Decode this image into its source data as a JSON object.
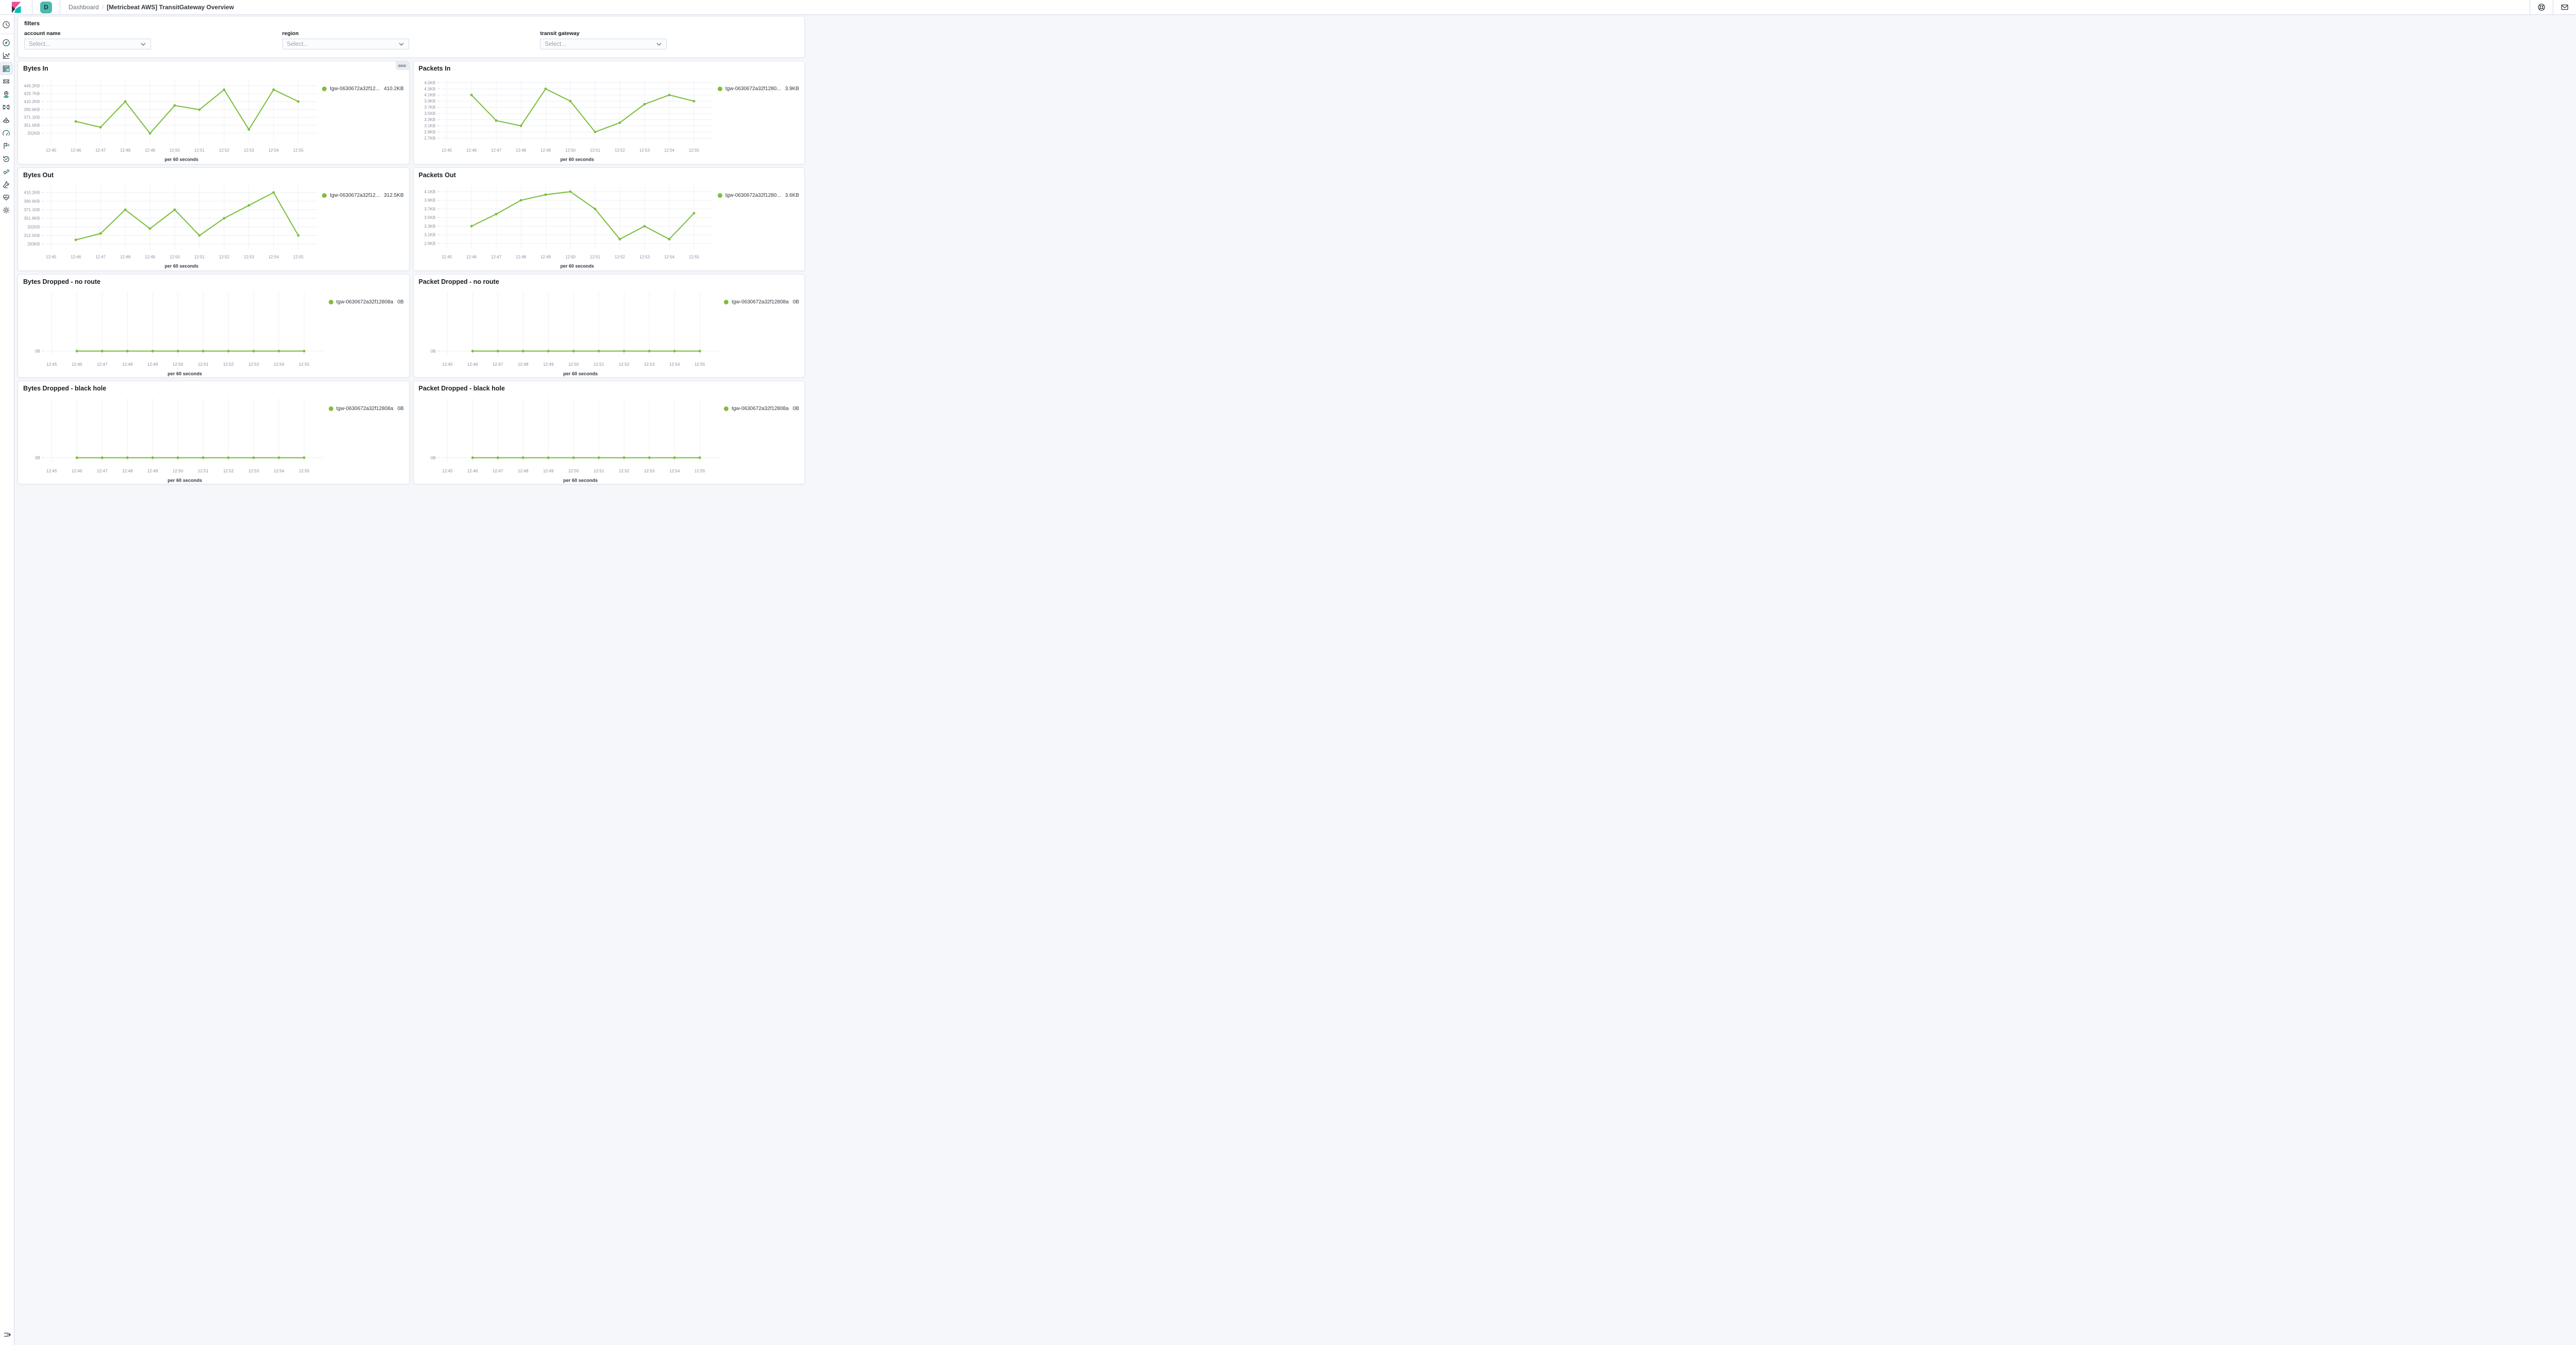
{
  "header": {
    "space_initial": "D",
    "breadcrumb": {
      "parent": "Dashboard",
      "separator": "/",
      "current": "[Metricbeat AWS] TransitGateway Overview"
    }
  },
  "sidebar": {
    "items": [
      {
        "name": "recently-viewed"
      },
      {
        "name": "discover"
      },
      {
        "name": "visualize"
      },
      {
        "name": "dashboard",
        "selected": true
      },
      {
        "name": "canvas"
      },
      {
        "name": "maps"
      },
      {
        "name": "machine-learning"
      },
      {
        "name": "metrics"
      },
      {
        "name": "logs"
      },
      {
        "name": "apm"
      },
      {
        "name": "uptime"
      },
      {
        "name": "siem"
      },
      {
        "name": "dev-tools"
      },
      {
        "name": "stack-monitoring"
      },
      {
        "name": "management"
      }
    ]
  },
  "filters": {
    "title": "filters",
    "fields": [
      {
        "label": "account name",
        "placeholder": "Select..."
      },
      {
        "label": "region",
        "placeholder": "Select..."
      },
      {
        "label": "transit gateway",
        "placeholder": "Select..."
      }
    ]
  },
  "colors": {
    "series_green": "#7DBE3C",
    "avatar_teal": "#4DBAAE",
    "logo_pink": "#F04E98",
    "logo_teal": "#00BFB3",
    "logo_dark": "#343741"
  },
  "chart_data": [
    {
      "id": "bytes-in",
      "type": "line",
      "title": "Bytes In",
      "options_icon": true,
      "legend": {
        "name": "tgw-0630672a32f12...",
        "value": "410.2KB"
      },
      "xlabel": "per 60 seconds",
      "x_ticks": [
        "12:45",
        "12:46",
        "12:47",
        "12:48",
        "12:49",
        "12:50",
        "12:51",
        "12:52",
        "12:53",
        "12:54",
        "12:55"
      ],
      "y_ticks": [
        [
          449.2,
          "449.2KB"
        ],
        [
          429.7,
          "429.7KB"
        ],
        [
          410.2,
          "410.2KB"
        ],
        [
          390.6,
          "390.6KB"
        ],
        [
          371.1,
          "371.1KB"
        ],
        [
          351.6,
          "351.6KB"
        ],
        [
          332,
          "332KB"
        ]
      ],
      "y_range": [
        309,
        466
      ],
      "series": [
        {
          "name": "tgw-0630672a32f12808a",
          "start_index": 1,
          "values": [
            361,
            346.5,
            410.2,
            331.5,
            400.4,
            390,
            439.5,
            341,
            439.5,
            410.2
          ],
          "unit": "KB"
        }
      ]
    },
    {
      "id": "packets-in",
      "type": "line",
      "title": "Packets In",
      "options_icon": false,
      "legend": {
        "name": "tgw-0630672a32f1280...",
        "value": "3.9KB"
      },
      "xlabel": "per 60 seconds",
      "x_ticks": [
        "12:45",
        "12:46",
        "12:47",
        "12:48",
        "12:49",
        "12:50",
        "12:51",
        "12:52",
        "12:53",
        "12:54",
        "12:55"
      ],
      "y_ticks": [
        [
          4.5,
          "4.5KB"
        ],
        [
          4.3,
          "4.3KB"
        ],
        [
          4.1,
          "4.1KB"
        ],
        [
          3.9,
          "3.9KB"
        ],
        [
          3.7,
          "3.7KB"
        ],
        [
          3.5,
          "3.5KB"
        ],
        [
          3.3,
          "3.3KB"
        ],
        [
          3.1,
          "3.1KB"
        ],
        [
          2.9,
          "2.9KB"
        ],
        [
          2.7,
          "2.7KB"
        ]
      ],
      "y_range": [
        2.56,
        4.62
      ],
      "series": [
        {
          "name": "tgw-0630672a32f12808a",
          "start_index": 1,
          "values": [
            4.1,
            3.27,
            3.1,
            4.3,
            3.9,
            2.9,
            3.2,
            3.8,
            4.1,
            3.9
          ],
          "unit": "KB"
        }
      ]
    },
    {
      "id": "bytes-out",
      "type": "line",
      "title": "Bytes Out",
      "options_icon": false,
      "legend": {
        "name": "tgw-0630672a32f12...",
        "value": "312.5KB"
      },
      "xlabel": "per 60 seconds",
      "x_ticks": [
        "12:45",
        "12:46",
        "12:47",
        "12:48",
        "12:49",
        "12:50",
        "12:51",
        "12:52",
        "12:53",
        "12:54",
        "12:55"
      ],
      "y_ticks": [
        [
          410.2,
          "410.2KB"
        ],
        [
          390.6,
          "390.6KB"
        ],
        [
          371.1,
          "371.1KB"
        ],
        [
          351.6,
          "351.6KB"
        ],
        [
          332,
          "332KB"
        ],
        [
          312.5,
          "312.5KB"
        ],
        [
          293,
          "293KB"
        ]
      ],
      "y_range": [
        281.5,
        426
      ],
      "series": [
        {
          "name": "tgw-0630672a32f12808a",
          "start_index": 1,
          "values": [
            302.5,
            317,
            371.1,
            328,
            371.1,
            312.5,
            351.6,
            381,
            410.2,
            312.5
          ],
          "unit": "KB"
        }
      ]
    },
    {
      "id": "packets-out",
      "type": "line",
      "title": "Packets Out",
      "options_icon": false,
      "legend": {
        "name": "tgw-0630672a32f1280...",
        "value": "3.6KB"
      },
      "xlabel": "per 60 seconds",
      "x_ticks": [
        "12:45",
        "12:46",
        "12:47",
        "12:48",
        "12:49",
        "12:50",
        "12:51",
        "12:52",
        "12:53",
        "12:54",
        "12:55"
      ],
      "y_ticks": [
        [
          4.1,
          "4.1KB"
        ],
        [
          3.9,
          "3.9KB"
        ],
        [
          3.7,
          "3.7KB"
        ],
        [
          3.5,
          "3.5KB"
        ],
        [
          3.3,
          "3.3KB"
        ],
        [
          3.1,
          "3.1KB"
        ],
        [
          2.9,
          "2.9KB"
        ]
      ],
      "y_range": [
        2.77,
        4.24
      ],
      "series": [
        {
          "name": "tgw-0630672a32f12808a",
          "start_index": 1,
          "values": [
            3.3,
            3.58,
            3.9,
            4.03,
            4.1,
            3.7,
            3.0,
            3.3,
            3.0,
            3.6
          ],
          "unit": "KB"
        }
      ]
    },
    {
      "id": "bytes-dropped-no-route",
      "type": "line",
      "title": "Bytes Dropped - no route",
      "options_icon": false,
      "legend": {
        "name": "tgw-0630672a32f12808a",
        "value": "0B"
      },
      "xlabel": "per 60 seconds",
      "x_ticks": [
        "12:45",
        "12:46",
        "12:47",
        "12:48",
        "12:49",
        "12:50",
        "12:51",
        "12:52",
        "12:53",
        "12:54",
        "12:55"
      ],
      "y_ticks": [
        [
          0,
          "0B"
        ]
      ],
      "y_range": [
        -0.6,
        7
      ],
      "series": [
        {
          "name": "tgw-0630672a32f12808a",
          "start_index": 1,
          "values": [
            0,
            0,
            0,
            0,
            0,
            0,
            0,
            0,
            0,
            0
          ],
          "unit": "B"
        }
      ]
    },
    {
      "id": "packet-dropped-no-route",
      "type": "line",
      "title": "Packet Dropped - no route",
      "options_icon": false,
      "legend": {
        "name": "tgw-0630672a32f12808a",
        "value": "0B"
      },
      "xlabel": "per 60 seconds",
      "x_ticks": [
        "12:45",
        "12:46",
        "12:47",
        "12:48",
        "12:49",
        "12:50",
        "12:51",
        "12:52",
        "12:53",
        "12:54",
        "12:55"
      ],
      "y_ticks": [
        [
          0,
          "0B"
        ]
      ],
      "y_range": [
        -0.6,
        7
      ],
      "series": [
        {
          "name": "tgw-0630672a32f12808a",
          "start_index": 1,
          "values": [
            0,
            0,
            0,
            0,
            0,
            0,
            0,
            0,
            0,
            0
          ],
          "unit": "B"
        }
      ]
    },
    {
      "id": "bytes-dropped-black-hole",
      "type": "line",
      "title": "Bytes Dropped - black hole",
      "options_icon": false,
      "legend": {
        "name": "tgw-0630672a32f12808a",
        "value": "0B"
      },
      "xlabel": "per 60 seconds",
      "x_ticks": [
        "12:45",
        "12:46",
        "12:47",
        "12:48",
        "12:49",
        "12:50",
        "12:51",
        "12:52",
        "12:53",
        "12:54",
        "12:55"
      ],
      "y_ticks": [
        [
          0,
          "0B"
        ]
      ],
      "y_range": [
        -0.6,
        7
      ],
      "series": [
        {
          "name": "tgw-0630672a32f12808a",
          "start_index": 1,
          "values": [
            0,
            0,
            0,
            0,
            0,
            0,
            0,
            0,
            0,
            0
          ],
          "unit": "B"
        }
      ]
    },
    {
      "id": "packet-dropped-black-hole",
      "type": "line",
      "title": "Packet Dropped - black hole",
      "options_icon": false,
      "legend": {
        "name": "tgw-0630672a32f12808a",
        "value": "0B"
      },
      "xlabel": "per 60 seconds",
      "x_ticks": [
        "12:45",
        "12:46",
        "12:47",
        "12:48",
        "12:49",
        "12:50",
        "12:51",
        "12:52",
        "12:53",
        "12:54",
        "12:55"
      ],
      "y_ticks": [
        [
          0,
          "0B"
        ]
      ],
      "y_range": [
        -0.6,
        7
      ],
      "series": [
        {
          "name": "tgw-0630672a32f12808a",
          "start_index": 1,
          "values": [
            0,
            0,
            0,
            0,
            0,
            0,
            0,
            0,
            0,
            0
          ],
          "unit": "B"
        }
      ]
    }
  ]
}
